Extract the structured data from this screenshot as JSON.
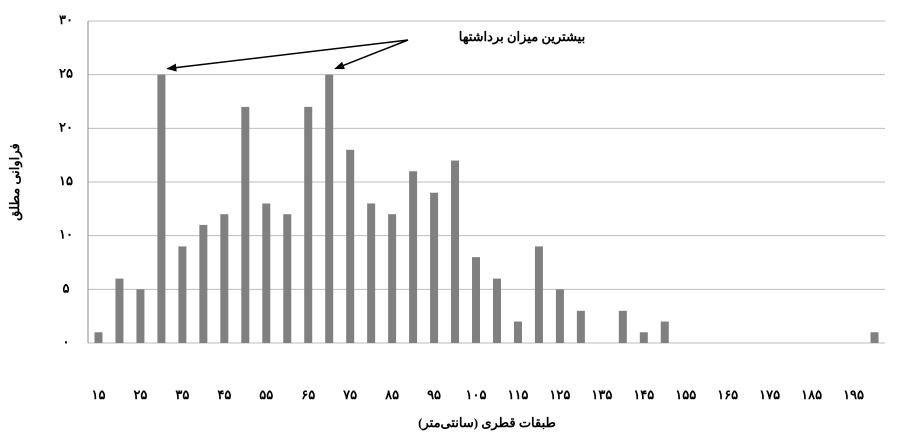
{
  "chart_data": {
    "type": "bar",
    "annotation": "بیشترین میزان برداشتها",
    "y_label": "فراوانی مطلق",
    "x_label": "طبقات قطری (سانتی‌متر)",
    "categories": [
      "۱۵",
      null,
      "۲۵",
      null,
      "۳۵",
      null,
      "۴۵",
      null,
      "۵۵",
      null,
      "۶۵",
      null,
      "۷۵",
      null,
      "۸۵",
      null,
      "۹۵",
      null,
      "۱۰۵",
      null,
      "۱۱۵",
      null,
      "۱۲۵",
      null,
      "۱۳۵",
      null,
      "۱۴۵",
      null,
      "۱۵۵",
      null,
      "۱۶۵",
      null,
      "۱۷۵",
      null,
      "۱۸۵",
      null,
      "۱۹۵",
      null
    ],
    "values": [
      1,
      6,
      5,
      25,
      9,
      11,
      12,
      22,
      13,
      12,
      22,
      25,
      18,
      13,
      12,
      16,
      14,
      17,
      8,
      6,
      2,
      9,
      5,
      3,
      0,
      3,
      1,
      2,
      0,
      0,
      0,
      0,
      0,
      0,
      0,
      0,
      0,
      1
    ],
    "color": "#808080",
    "ylim": [
      0,
      30
    ],
    "yticks": [
      {
        "value": 0,
        "label": "۰"
      },
      {
        "value": 5,
        "label": "۵"
      },
      {
        "value": 10,
        "label": "۱۰"
      },
      {
        "value": 15,
        "label": "۱۵"
      },
      {
        "value": 20,
        "label": "۲۰"
      },
      {
        "value": 25,
        "label": "۲۵"
      },
      {
        "value": 30,
        "label": "۳۰"
      }
    ],
    "grid": true
  }
}
